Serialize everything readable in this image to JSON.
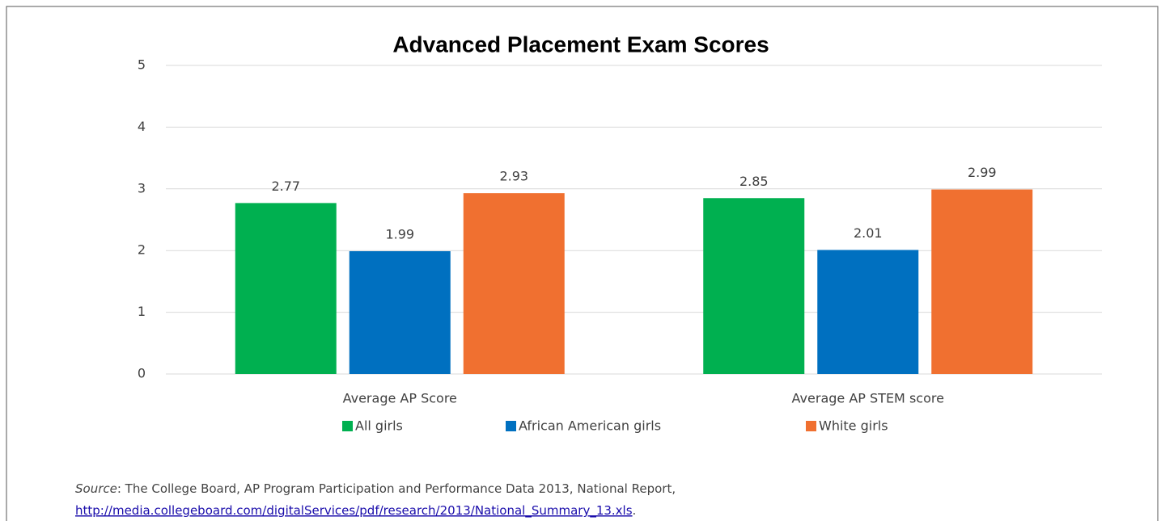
{
  "chart_data": {
    "type": "bar",
    "title": "Advanced Placement Exam Scores",
    "categories": [
      "Average AP Score",
      "Average AP STEM score"
    ],
    "series": [
      {
        "name": "All girls",
        "color": "#00b050",
        "values": [
          2.77,
          2.85
        ]
      },
      {
        "name": "African American girls",
        "color": "#0070c0",
        "values": [
          1.99,
          2.01
        ]
      },
      {
        "name": "White girls",
        "color": "#f07030",
        "values": [
          2.93,
          2.99
        ]
      }
    ],
    "ylim": [
      0,
      5
    ],
    "yticks": [
      0,
      1,
      2,
      3,
      4,
      5
    ],
    "grid": true,
    "legend": "bottom"
  },
  "source": {
    "label": "Source",
    "text": ": The College Board, AP Program Participation and Performance Data 2013, National Report,",
    "url": "http://media.collegeboard.com/digitalServices/pdf/research/2013/National_Summary_13.xls",
    "end": "."
  }
}
